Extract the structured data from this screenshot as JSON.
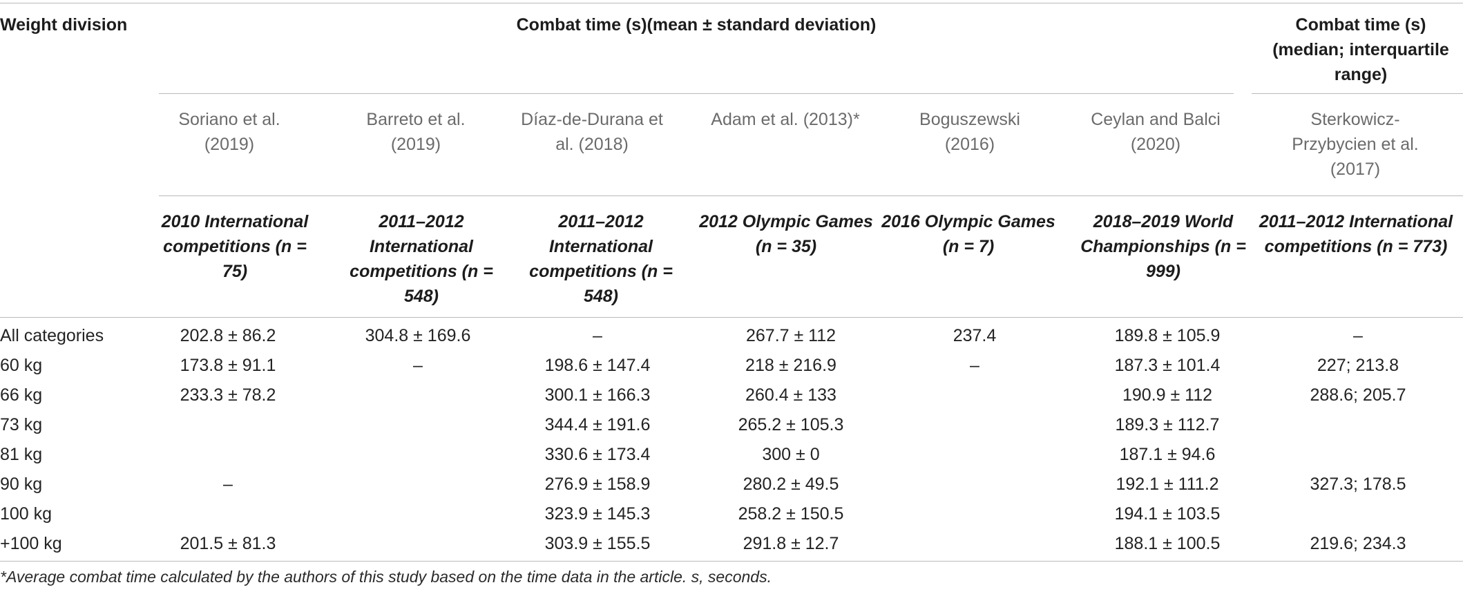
{
  "table": {
    "header": {
      "weight_division": "Weight division",
      "mean_group": "Combat time (s)(mean ± standard deviation)",
      "median_group": "Combat time (s) (median; interquartile range)"
    },
    "studies": [
      {
        "author": "Soriano et al. (2019)",
        "sample": "2010 International competitions (n = 75)"
      },
      {
        "author": "Barreto et al. (2019)",
        "sample": "2011–2012 International competitions (n = 548)"
      },
      {
        "author": "Díaz-de-Durana et al. (2018)",
        "sample": "2011–2012 International competitions (n = 548)"
      },
      {
        "author": "Adam et al. (2013)*",
        "sample": "2012 Olympic Games (n = 35)"
      },
      {
        "author": "Boguszewski (2016)",
        "sample": "2016 Olympic Games (n = 7)"
      },
      {
        "author": "Ceylan and Balci (2020)",
        "sample": "2018–2019 World Championships (n = 999)"
      },
      {
        "author": "Sterkowicz-Przybycien et al. (2017)",
        "sample": "2011–2012 International competitions (n = 773)"
      }
    ],
    "rows": [
      {
        "label": "All categories",
        "cells": [
          "202.8 ± 86.2",
          "304.8 ± 169.6",
          "–",
          "267.7 ± 112",
          "237.4",
          "189.8 ± 105.9",
          "–"
        ]
      },
      {
        "label": "60 kg",
        "cells": [
          "173.8 ± 91.1",
          "–",
          "198.6 ± 147.4",
          "218 ± 216.9",
          "–",
          "187.3 ± 101.4",
          "227; 213.8"
        ]
      },
      {
        "label": "66 kg",
        "cells": [
          "233.3 ± 78.2",
          "",
          "300.1 ± 166.3",
          "260.4 ± 133",
          "",
          "190.9 ± 112",
          "288.6; 205.7"
        ]
      },
      {
        "label": "73 kg",
        "cells": [
          "",
          "",
          "344.4 ± 191.6",
          "265.2 ± 105.3",
          "",
          "189.3 ± 112.7",
          ""
        ]
      },
      {
        "label": "81 kg",
        "cells": [
          "",
          "",
          "330.6 ± 173.4",
          "300 ± 0",
          "",
          "187.1 ± 94.6",
          ""
        ]
      },
      {
        "label": "90 kg",
        "cells": [
          "–",
          "",
          "276.9 ± 158.9",
          "280.2 ± 49.5",
          "",
          "192.1 ± 111.2",
          "327.3; 178.5"
        ]
      },
      {
        "label": "100 kg",
        "cells": [
          "",
          "",
          "323.9 ± 145.3",
          "258.2 ± 150.5",
          "",
          "194.1 ± 103.5",
          ""
        ]
      },
      {
        "label": "+100 kg",
        "cells": [
          "201.5 ± 81.3",
          "",
          "303.9 ± 155.5",
          "291.8 ± 12.7",
          "",
          "188.1 ± 100.5",
          "219.6; 234.3"
        ]
      }
    ],
    "footnote": "*Average combat time calculated by the authors of this study based on the time data in the article. s, seconds."
  }
}
